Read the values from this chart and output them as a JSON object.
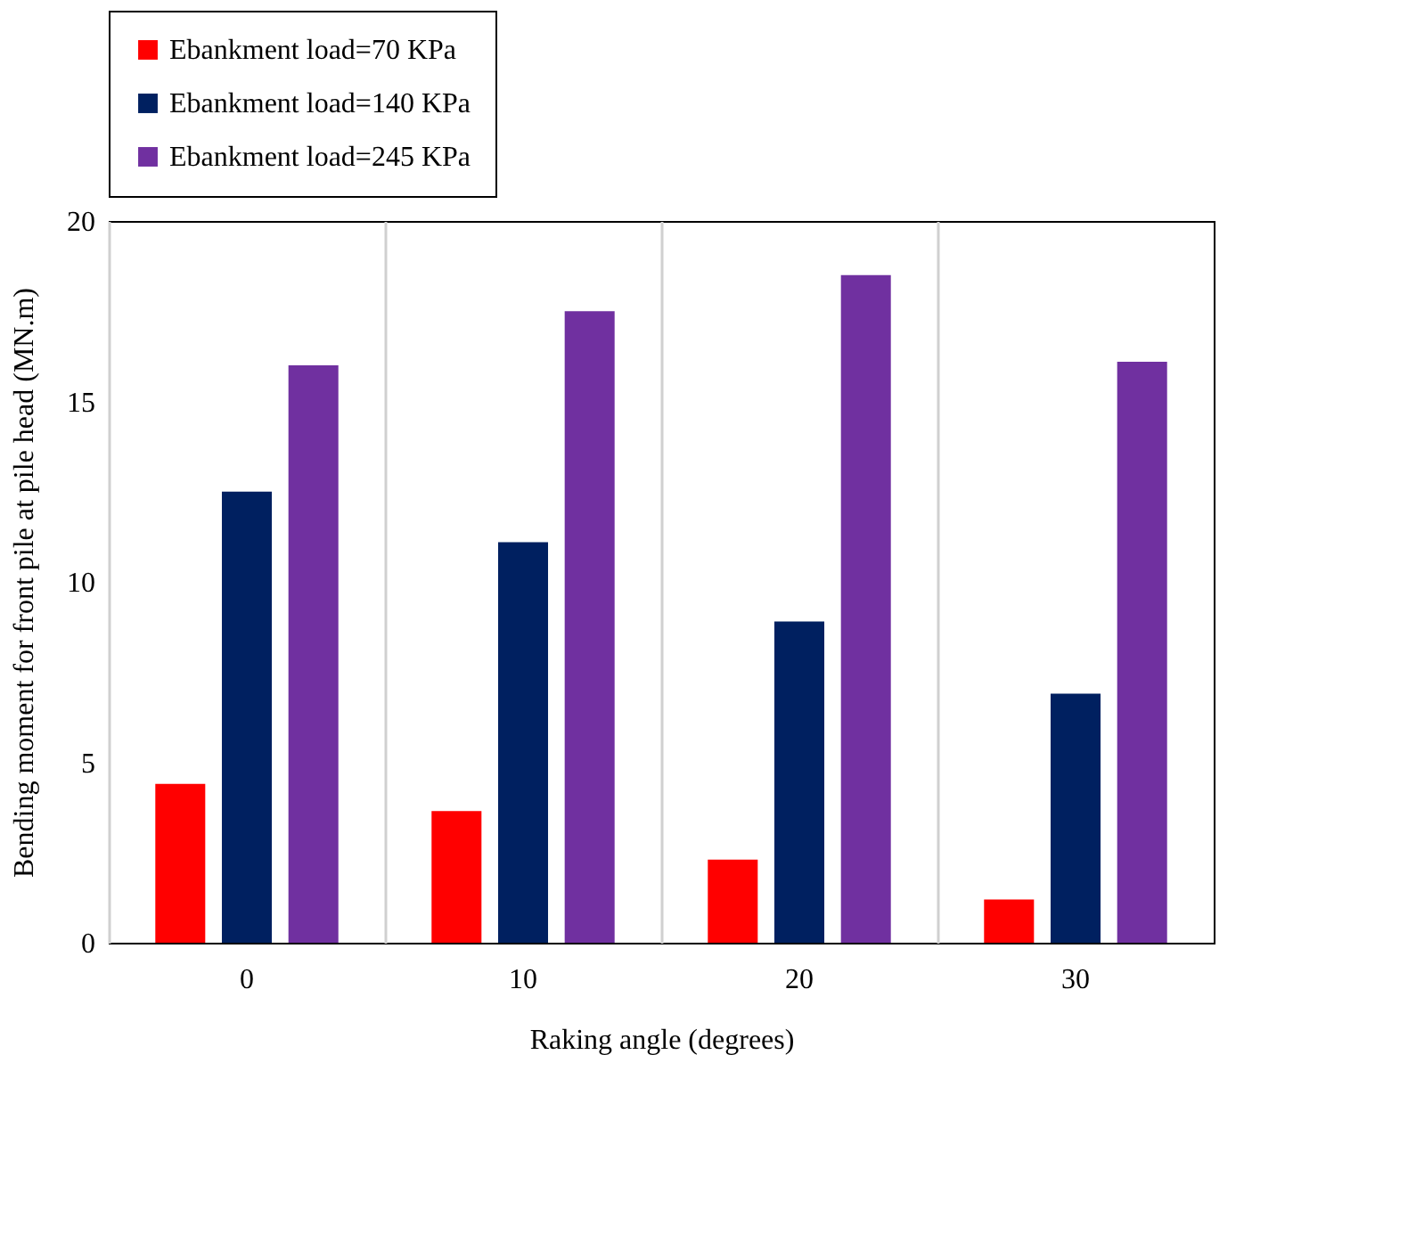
{
  "chart_data": {
    "type": "bar",
    "xlabel": "Raking angle (degrees)",
    "ylabel": "Bending moment for front pile at pile head (MN.m)",
    "categories": [
      "0",
      "10",
      "20",
      "30"
    ],
    "series": [
      {
        "name": "Ebankment load=70 KPa",
        "color": "#ff0000",
        "values": [
          4.4,
          3.65,
          2.3,
          1.2
        ]
      },
      {
        "name": "Ebankment load=140 KPa",
        "color": "#002060",
        "values": [
          12.5,
          11.1,
          8.9,
          6.9
        ]
      },
      {
        "name": "Ebankment load=245 KPa",
        "color": "#7030a0",
        "values": [
          16.0,
          17.5,
          18.5,
          16.1
        ]
      }
    ],
    "ylim": [
      0,
      20
    ],
    "yticks": [
      0,
      5,
      10,
      15,
      20
    ],
    "grid": "x",
    "legend": "top"
  }
}
